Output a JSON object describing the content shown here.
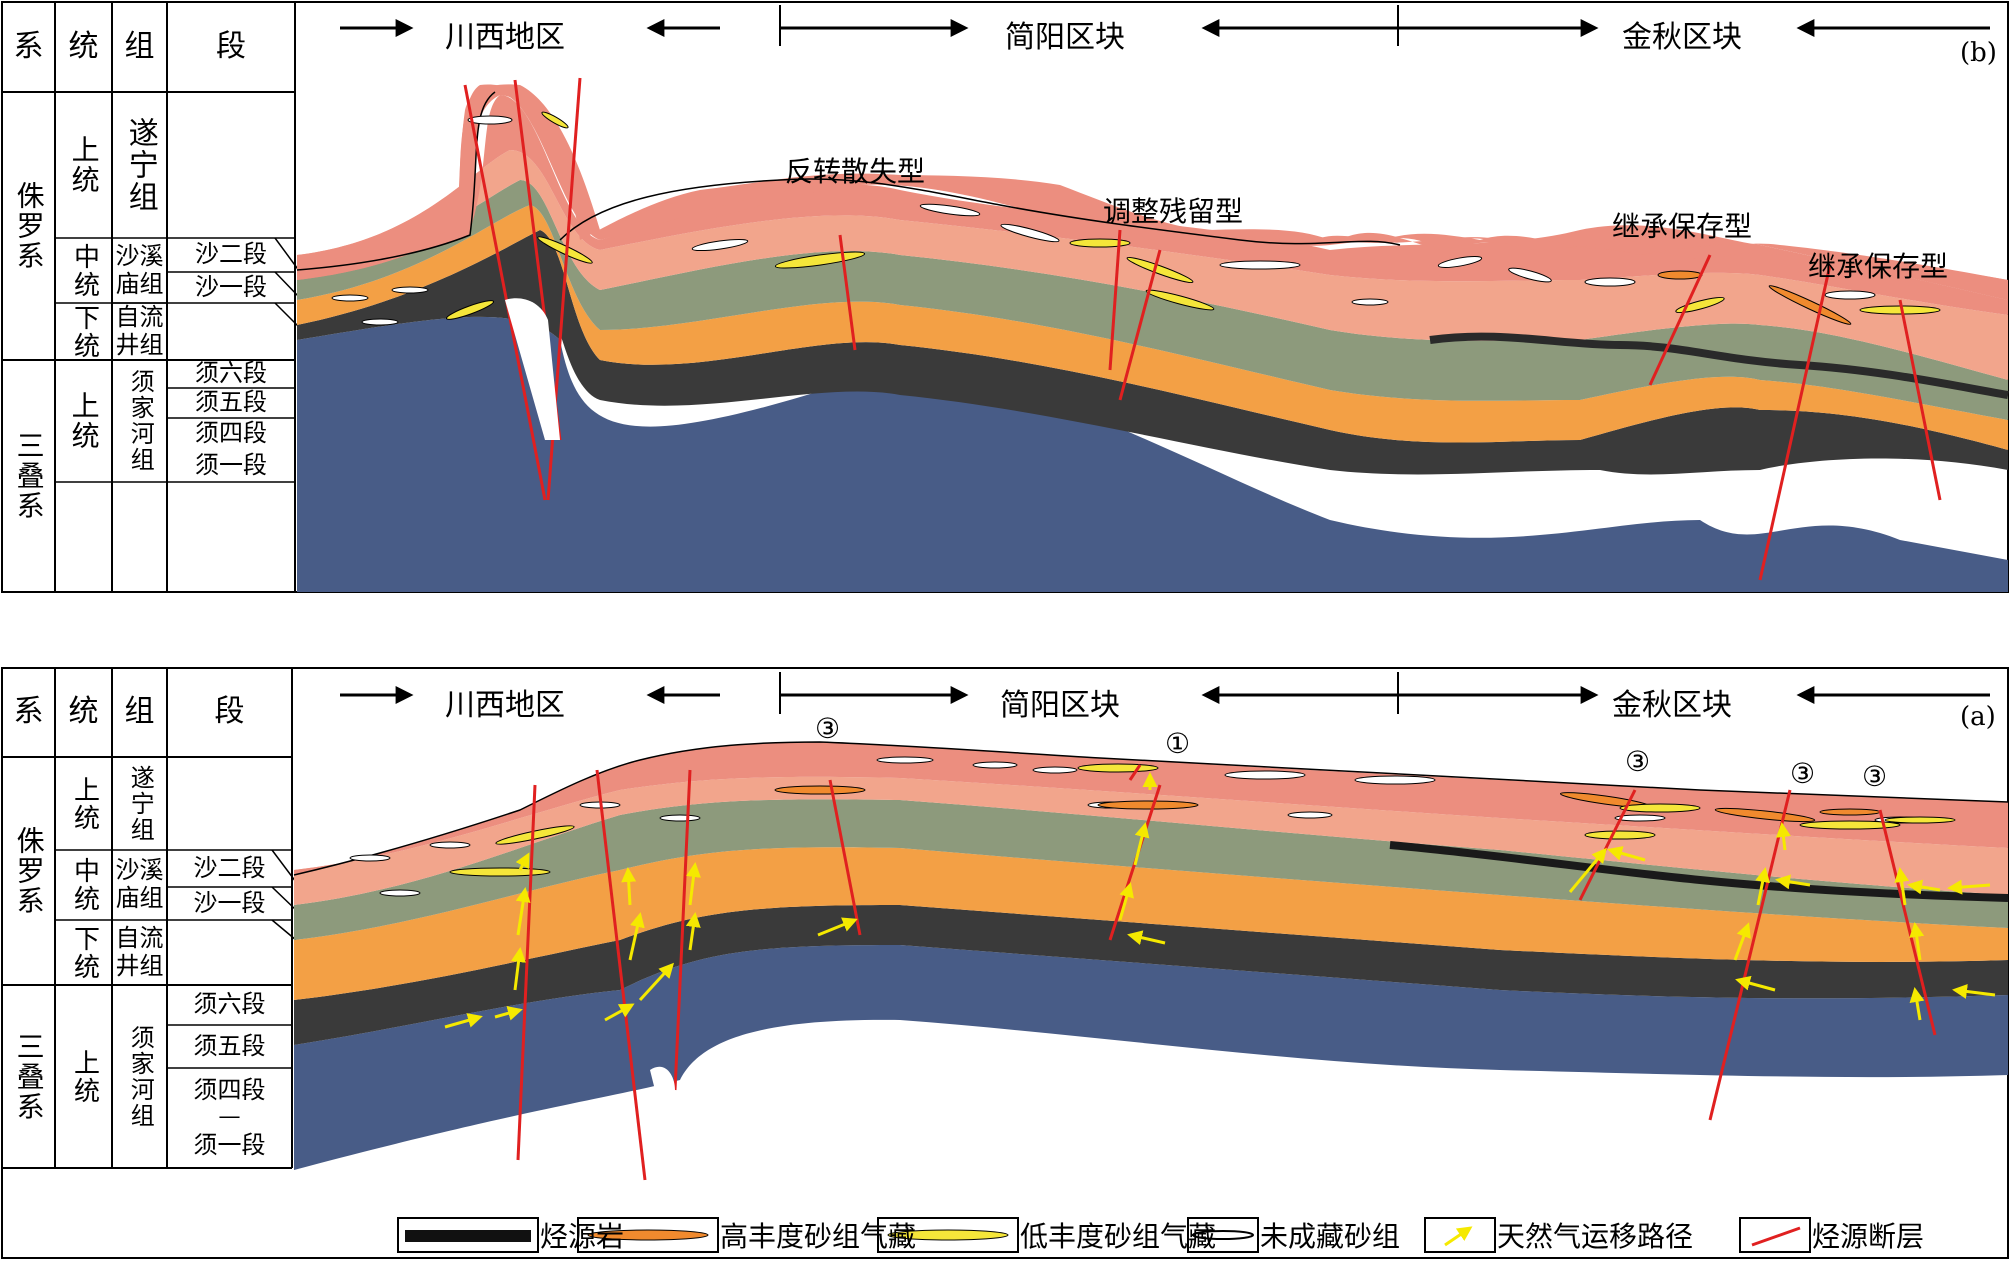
{
  "panel_b": {
    "letter": "(b)",
    "header": {
      "system": "系",
      "series": "统",
      "formation": "组",
      "member": "段"
    },
    "regions": [
      "川西地区",
      "简阳区块",
      "金秋区块"
    ],
    "strat": {
      "jurassic": "侏罗系",
      "triassic": "三叠系",
      "upper": "上统",
      "middle": "中统",
      "lower": "下统",
      "upper_t": "上统",
      "suining": "遂宁组",
      "shaximiao": "沙溪庙组",
      "ziliujing": "自流井组",
      "xujiahe": "须家河组",
      "sha2": "沙二段",
      "sha1": "沙一段",
      "xu6": "须六段",
      "xu5": "须五段",
      "xu4": "须四段",
      "xu1": "须一段"
    },
    "types": [
      "反转散失型",
      "调整残留型",
      "继承保存型",
      "继承保存型"
    ]
  },
  "panel_a": {
    "letter": "(a)",
    "header": {
      "system": "系",
      "series": "统",
      "formation": "组",
      "member": "段"
    },
    "regions": [
      "川西地区",
      "简阳区块",
      "金秋区块"
    ],
    "strat": {
      "jurassic": "侏罗系",
      "triassic": "三叠系",
      "upper": "上统",
      "middle": "中统",
      "lower": "下统",
      "upper_t": "上统",
      "suining": "遂宁组",
      "shaximiao": "沙溪庙组",
      "ziliujing": "自流井组",
      "xujiahe": "须家河组",
      "sha2": "沙二段",
      "sha1": "沙一段",
      "xu6": "须六段",
      "xu5": "须五段",
      "xu4": "须四段",
      "dash": "—",
      "xu1": "须一段"
    },
    "markers": [
      "③",
      "①",
      "③",
      "③",
      "③"
    ]
  },
  "legend": [
    {
      "label": "烃源岩",
      "icon": "source-rock-icon"
    },
    {
      "label": "高丰度砂组气藏",
      "icon": "high-abundance-gas-icon"
    },
    {
      "label": "低丰度砂组气藏",
      "icon": "low-abundance-gas-icon"
    },
    {
      "label": "未成藏砂组",
      "icon": "unreservoired-sand-icon"
    },
    {
      "label": "天然气运移路径",
      "icon": "migration-arrow-icon"
    },
    {
      "label": "烃源断层",
      "icon": "source-fault-icon"
    }
  ],
  "colors": {
    "top_red": "#ec8e7f",
    "sand_pink": "#f2a58c",
    "green": "#8d9a7c",
    "orange": "#f3a045",
    "black": "#3a3a3a",
    "blue": "#485c87",
    "fault": "#e02020",
    "high_lens": "#f08a2e",
    "low_lens": "#f5e63a",
    "arrow": "#f5e900"
  }
}
